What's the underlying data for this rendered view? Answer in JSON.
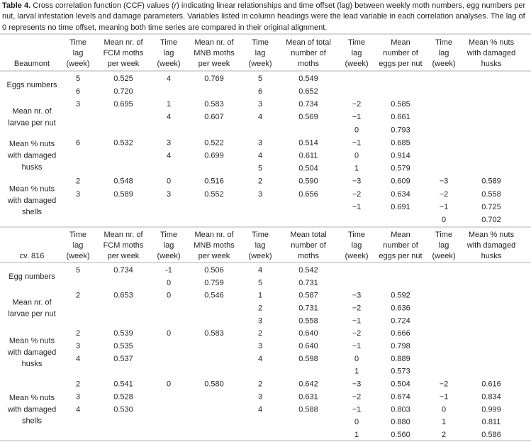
{
  "caption": {
    "label": "Table 4.",
    "text_before": " Cross correlation function (CCF) values (",
    "italic": "r",
    "text_after": ") indicating linear relationships and time offset (lag) between weekly moth numbers, egg numbers per nut, larval infestation levels and damage parameters. Variables listed in column headings were the lead variable in each correlation analyses. The lag of 0 represents no time offset, meaning both time series are compared in their original alignment."
  },
  "sections": [
    {
      "headers": [
        [
          "Beaumont"
        ],
        [
          "Time",
          "lag",
          "(week)"
        ],
        [
          "Mean nr. of",
          "FCM moths",
          "per week"
        ],
        [
          "Time",
          "lag",
          "(week)"
        ],
        [
          "Mean nr. of",
          "MNB moths",
          "per week"
        ],
        [
          "Time",
          "lag",
          "(week)"
        ],
        [
          "Mean of total",
          "number of",
          "moths"
        ],
        [
          "Time",
          "lag",
          "(week)"
        ],
        [
          "Mean",
          "number of",
          "eggs per nut"
        ],
        [
          "Time",
          "lag",
          "(week)"
        ],
        [
          "Mean % nuts",
          "with damaged",
          "husks"
        ]
      ],
      "groups": [
        {
          "label": [
            "Eggs numbers"
          ],
          "rows": [
            [
              "5",
              "0.525",
              "4",
              "0.769",
              "5",
              "0.549",
              null,
              null,
              null,
              null
            ],
            [
              "6",
              "0.720",
              null,
              null,
              "6",
              "0.652",
              null,
              null,
              null,
              null
            ]
          ]
        },
        {
          "label": [
            "Mean nr. of",
            "larvae per nut"
          ],
          "rows": [
            [
              "3",
              "0.695",
              "1",
              "0.583",
              "3",
              "0.734",
              "−2",
              "0.585",
              null,
              null
            ],
            [
              null,
              null,
              "4",
              "0.607",
              "4",
              "0.569",
              "−1",
              "0.661",
              null,
              null
            ],
            [
              null,
              null,
              null,
              null,
              null,
              null,
              "0",
              "0.793",
              null,
              null
            ]
          ]
        },
        {
          "label": [
            "Mean % nuts",
            "with damaged",
            "husks"
          ],
          "rows": [
            [
              "6",
              "0.532",
              "3",
              "0.522",
              "3",
              "0.514",
              "−1",
              "0.685",
              null,
              null
            ],
            [
              null,
              null,
              "4",
              "0.699",
              "4",
              "0.611",
              "0",
              "0.914",
              null,
              null
            ],
            [
              null,
              null,
              null,
              null,
              "5",
              "0.504",
              "1",
              "0.579",
              null,
              null
            ]
          ]
        },
        {
          "label": [
            "Mean % nuts",
            "with damaged",
            "shells"
          ],
          "rows": [
            [
              "2",
              "0.548",
              "0",
              "0.516",
              "2",
              "0.590",
              "−3",
              "0.609",
              "−3",
              "0.589"
            ],
            [
              "3",
              "0.589",
              "3",
              "0.552",
              "3",
              "0.656",
              "−2",
              "0.634",
              "−2",
              "0.558"
            ],
            [
              null,
              null,
              null,
              null,
              null,
              null,
              "−1",
              "0.691",
              "−1",
              "0.725"
            ],
            [
              null,
              null,
              null,
              null,
              null,
              null,
              null,
              null,
              "0",
              "0.702"
            ]
          ]
        }
      ]
    },
    {
      "headers": [
        [
          "cv. 816"
        ],
        [
          "Time",
          "lag",
          "(week)"
        ],
        [
          "Mean nr. of",
          "FCM moths",
          "per week"
        ],
        [
          "Time",
          "lag",
          "(week)"
        ],
        [
          "Mean nr. of",
          "MNB moths",
          "per week"
        ],
        [
          "Time",
          "lag",
          "(week)"
        ],
        [
          "Mean total",
          "number of",
          "moths"
        ],
        [
          "Time",
          "lag",
          "(week)"
        ],
        [
          "Mean",
          "number of",
          "eggs per nut"
        ],
        [
          "Time",
          "lag",
          "(week)"
        ],
        [
          "Mean % nuts",
          "with damaged",
          "husks"
        ]
      ],
      "groups": [
        {
          "label": [
            "Egg numbers"
          ],
          "rows": [
            [
              "5",
              "0.734",
              "-1",
              "0.506",
              "4",
              "0.542",
              null,
              null,
              null,
              null
            ],
            [
              null,
              null,
              "0",
              "0.759",
              "5",
              "0.731",
              null,
              null,
              null,
              null
            ]
          ]
        },
        {
          "label": [
            "Mean nr. of",
            "larvae per nut"
          ],
          "rows": [
            [
              "2",
              "0.653",
              "0",
              "0.546",
              "1",
              "0.587",
              "−3",
              "0.592",
              null,
              null
            ],
            [
              null,
              null,
              null,
              null,
              "2",
              "0.731",
              "−2",
              "0.636",
              null,
              null
            ],
            [
              null,
              null,
              null,
              null,
              "3",
              "0.558",
              "−1",
              "0.724",
              null,
              null
            ]
          ]
        },
        {
          "label": [
            "Mean % nuts",
            "with damaged",
            "husks"
          ],
          "rows": [
            [
              "2",
              "0.539",
              "0",
              "0.583",
              "2",
              "0.640",
              "−2",
              "0.666",
              null,
              null
            ],
            [
              "3",
              "0.535",
              null,
              null,
              "3",
              "0.640",
              "−1",
              "0.798",
              null,
              null
            ],
            [
              "4",
              "0.537",
              null,
              null,
              "4",
              "0.598",
              "0",
              "0.889",
              null,
              null
            ],
            [
              null,
              null,
              null,
              null,
              null,
              null,
              "1",
              "0.573",
              null,
              null
            ]
          ]
        },
        {
          "label": [
            "Mean % nuts",
            "with damaged",
            "shells"
          ],
          "rows": [
            [
              "2",
              "0.541",
              "0",
              "0.580",
              "2",
              "0.642",
              "−3",
              "0.504",
              "−2",
              "0.616"
            ],
            [
              "3",
              "0.528",
              null,
              null,
              "3",
              "0.631",
              "−2",
              "0.674",
              "−1",
              "0.834"
            ],
            [
              "4",
              "0.530",
              null,
              null,
              "4",
              "0.588",
              "−1",
              "0.803",
              "0",
              "0.999"
            ],
            [
              null,
              null,
              null,
              null,
              null,
              null,
              "0",
              "0.880",
              "1",
              "0.811"
            ],
            [
              null,
              null,
              null,
              null,
              null,
              null,
              "1",
              "0.560",
              "2",
              "0.586"
            ]
          ]
        }
      ]
    }
  ]
}
